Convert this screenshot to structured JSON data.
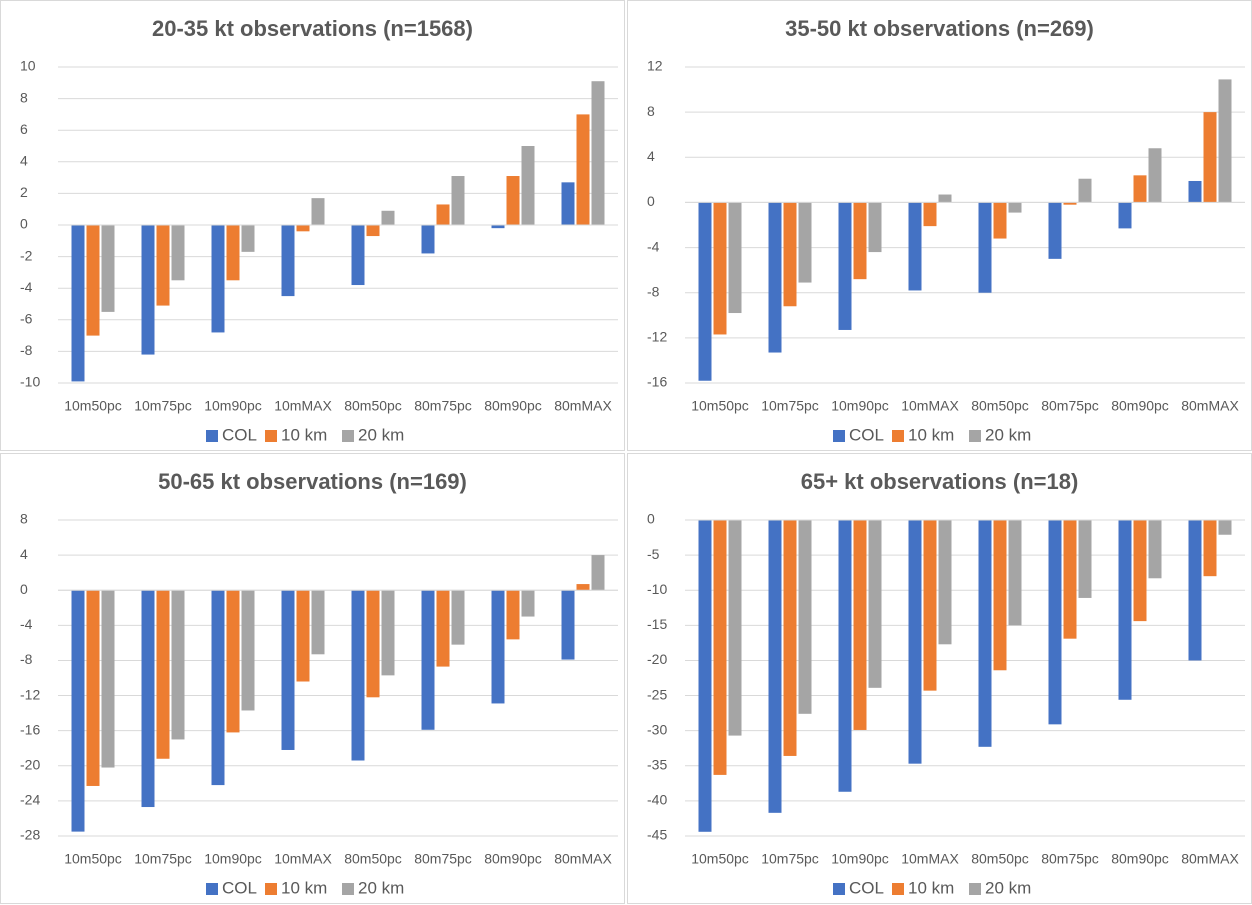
{
  "chart_data": [
    {
      "type": "bar",
      "title": "20-35 kt observations (n=1568)",
      "categories": [
        "10m50pc",
        "10m75pc",
        "10m90pc",
        "10mMAX",
        "80m50pc",
        "80m75pc",
        "80m90pc",
        "80mMAX"
      ],
      "series": [
        {
          "name": "COL",
          "color": "#4472c4",
          "values": [
            -9.9,
            -8.2,
            -6.8,
            -4.5,
            -3.8,
            -1.8,
            -0.2,
            2.7
          ]
        },
        {
          "name": "10 km",
          "color": "#ed7d31",
          "values": [
            -7.0,
            -5.1,
            -3.5,
            -0.4,
            -0.7,
            1.3,
            3.1,
            7.0
          ]
        },
        {
          "name": "20 km",
          "color": "#a5a5a5",
          "values": [
            -5.5,
            -3.5,
            -1.7,
            1.7,
            0.9,
            3.1,
            5.0,
            9.1
          ]
        }
      ],
      "ylim": [
        -10,
        10
      ],
      "yticks": [
        -10,
        -8,
        -6,
        -4,
        -2,
        0,
        2,
        4,
        6,
        8,
        10
      ],
      "grid": true,
      "legend": "bottom"
    },
    {
      "type": "bar",
      "title": "35-50 kt observations (n=269)",
      "categories": [
        "10m50pc",
        "10m75pc",
        "10m90pc",
        "10mMAX",
        "80m50pc",
        "80m75pc",
        "80m90pc",
        "80mMAX"
      ],
      "series": [
        {
          "name": "COL",
          "color": "#4472c4",
          "values": [
            -15.8,
            -13.3,
            -11.3,
            -7.8,
            -8.0,
            -5.0,
            -2.3,
            1.9
          ]
        },
        {
          "name": "10 km",
          "color": "#ed7d31",
          "values": [
            -11.7,
            -9.2,
            -6.8,
            -2.1,
            -3.2,
            -0.2,
            2.4,
            8.0
          ]
        },
        {
          "name": "20 km",
          "color": "#a5a5a5",
          "values": [
            -9.8,
            -7.1,
            -4.4,
            0.7,
            -0.9,
            2.1,
            4.8,
            10.9
          ]
        }
      ],
      "ylim": [
        -16,
        12
      ],
      "yticks": [
        -16,
        -12,
        -8,
        -4,
        0,
        4,
        8,
        12
      ],
      "grid": true,
      "legend": "bottom"
    },
    {
      "type": "bar",
      "title": "50-65 kt observations (n=169)",
      "categories": [
        "10m50pc",
        "10m75pc",
        "10m90pc",
        "10mMAX",
        "80m50pc",
        "80m75pc",
        "80m90pc",
        "80mMAX"
      ],
      "series": [
        {
          "name": "COL",
          "color": "#4472c4",
          "values": [
            -27.5,
            -24.7,
            -22.2,
            -18.2,
            -19.4,
            -15.9,
            -12.9,
            -7.9
          ]
        },
        {
          "name": "10 km",
          "color": "#ed7d31",
          "values": [
            -22.3,
            -19.2,
            -16.2,
            -10.4,
            -12.2,
            -8.7,
            -5.6,
            0.7
          ]
        },
        {
          "name": "20 km",
          "color": "#a5a5a5",
          "values": [
            -20.2,
            -17.0,
            -13.7,
            -7.3,
            -9.7,
            -6.2,
            -3.0,
            4.0
          ]
        }
      ],
      "ylim": [
        -28,
        8
      ],
      "yticks": [
        -28,
        -24,
        -20,
        -16,
        -12,
        -8,
        -4,
        0,
        4,
        8
      ],
      "grid": true,
      "legend": "bottom"
    },
    {
      "type": "bar",
      "title": "65+ kt observations (n=18)",
      "categories": [
        "10m50pc",
        "10m75pc",
        "10m90pc",
        "10mMAX",
        "80m50pc",
        "80m75pc",
        "80m90pc",
        "80mMAX"
      ],
      "series": [
        {
          "name": "COL",
          "color": "#4472c4",
          "values": [
            -44.4,
            -41.7,
            -38.7,
            -34.7,
            -32.3,
            -29.1,
            -25.6,
            -20.0
          ]
        },
        {
          "name": "10 km",
          "color": "#ed7d31",
          "values": [
            -36.3,
            -33.6,
            -29.9,
            -24.3,
            -21.4,
            -16.9,
            -14.4,
            -8.0
          ]
        },
        {
          "name": "20 km",
          "color": "#a5a5a5",
          "values": [
            -30.7,
            -27.6,
            -23.9,
            -17.7,
            -15.0,
            -11.1,
            -8.3,
            -2.1
          ]
        }
      ],
      "ylim": [
        -45,
        0
      ],
      "yticks": [
        -45,
        -40,
        -35,
        -30,
        -25,
        -20,
        -15,
        -10,
        -5,
        0
      ],
      "grid": true,
      "legend": "bottom"
    }
  ]
}
